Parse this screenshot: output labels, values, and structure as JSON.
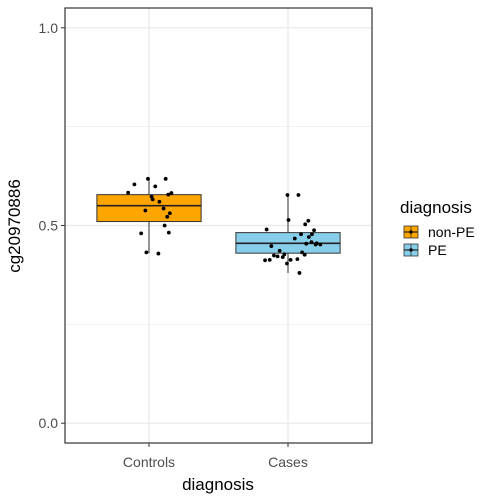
{
  "chart_data": {
    "type": "box",
    "xlabel": "diagnosis",
    "ylabel": "cg20970886",
    "ylim": [
      -0.05,
      1.05
    ],
    "yticks": [
      0.0,
      0.5,
      1.0
    ],
    "ytick_labels": [
      "0.0",
      "0.5",
      "1.0"
    ],
    "categories": [
      "Controls",
      "Cases"
    ],
    "grid": true,
    "legend": {
      "title": "diagnosis",
      "placement": "right",
      "entries": [
        {
          "label": "non-PE",
          "color": "#FFA500"
        },
        {
          "label": "PE",
          "color": "#87CEEB"
        }
      ]
    },
    "boxes": [
      {
        "category": "Controls",
        "group": "non-PE",
        "color": "#FFA500",
        "min": 0.43,
        "q1": 0.51,
        "median": 0.55,
        "q3": 0.578,
        "max": 0.618
      },
      {
        "category": "Cases",
        "group": "PE",
        "color": "#87CEEB",
        "min": 0.38,
        "q1": 0.43,
        "median": 0.455,
        "q3": 0.482,
        "max": 0.576
      }
    ],
    "points": {
      "Controls": [
        {
          "x": -0.02,
          "y": 0.618
        },
        {
          "x": 0.32,
          "y": 0.618
        },
        {
          "x": -0.28,
          "y": 0.604
        },
        {
          "x": -0.4,
          "y": 0.583
        },
        {
          "x": 0.12,
          "y": 0.599
        },
        {
          "x": 0.05,
          "y": 0.573
        },
        {
          "x": 0.07,
          "y": 0.566
        },
        {
          "x": 0.43,
          "y": 0.582
        },
        {
          "x": 0.37,
          "y": 0.578
        },
        {
          "x": 0.2,
          "y": 0.56
        },
        {
          "x": 0.28,
          "y": 0.543
        },
        {
          "x": -0.07,
          "y": 0.538
        },
        {
          "x": 0.4,
          "y": 0.531
        },
        {
          "x": 0.35,
          "y": 0.522
        },
        {
          "x": -0.15,
          "y": 0.48
        },
        {
          "x": 0.38,
          "y": 0.482
        },
        {
          "x": 0.3,
          "y": 0.5
        },
        {
          "x": 0.18,
          "y": 0.429
        },
        {
          "x": -0.05,
          "y": 0.432
        }
      ],
      "Cases": [
        {
          "x": -0.01,
          "y": 0.577
        },
        {
          "x": 0.2,
          "y": 0.577
        },
        {
          "x": 0.01,
          "y": 0.514
        },
        {
          "x": 0.39,
          "y": 0.512
        },
        {
          "x": 0.33,
          "y": 0.503
        },
        {
          "x": 0.5,
          "y": 0.488
        },
        {
          "x": 0.25,
          "y": 0.478
        },
        {
          "x": 0.46,
          "y": 0.478
        },
        {
          "x": 0.4,
          "y": 0.471
        },
        {
          "x": 0.13,
          "y": 0.467
        },
        {
          "x": 0.45,
          "y": 0.458
        },
        {
          "x": 0.55,
          "y": 0.455
        },
        {
          "x": 0.35,
          "y": 0.454
        },
        {
          "x": -0.32,
          "y": 0.448
        },
        {
          "x": -0.41,
          "y": 0.49
        },
        {
          "x": -0.35,
          "y": 0.413
        },
        {
          "x": -0.44,
          "y": 0.412
        },
        {
          "x": -0.27,
          "y": 0.424
        },
        {
          "x": -0.2,
          "y": 0.422
        },
        {
          "x": -0.1,
          "y": 0.42
        },
        {
          "x": -0.07,
          "y": 0.427
        },
        {
          "x": -0.16,
          "y": 0.436
        },
        {
          "x": -0.02,
          "y": 0.404
        },
        {
          "x": 0.05,
          "y": 0.413
        },
        {
          "x": 0.18,
          "y": 0.415
        },
        {
          "x": 0.27,
          "y": 0.432
        },
        {
          "x": 0.32,
          "y": 0.426
        },
        {
          "x": 0.53,
          "y": 0.452
        },
        {
          "x": 0.62,
          "y": 0.452
        },
        {
          "x": 0.22,
          "y": 0.38
        }
      ]
    }
  }
}
